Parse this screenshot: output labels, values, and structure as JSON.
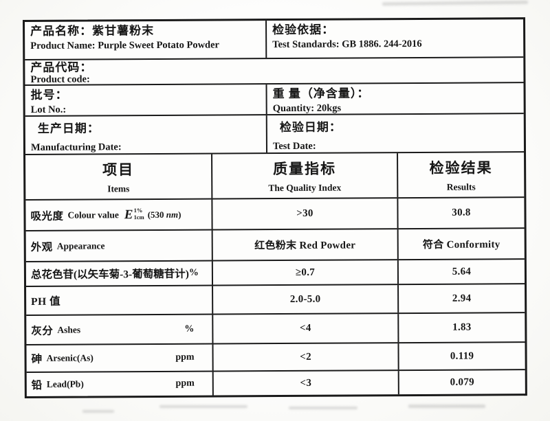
{
  "info": {
    "product_name": {
      "zh": "产品名称：紫甘薯粉末",
      "en": "Product Name: Purple Sweet Potato Powder"
    },
    "test_standards": {
      "zh": "检验依据：",
      "en": "Test Standards: GB 1886. 244-2016"
    },
    "product_code": {
      "zh": "产品代码：",
      "en": "Product code:"
    },
    "lot_no": {
      "zh": "批号：",
      "en": "Lot No.:"
    },
    "quantity": {
      "zh": "重 量（净含量）：",
      "en": "Quantity: 20kgs"
    },
    "manufacturing_date": {
      "zh": "生产日期：",
      "en": "Manufacturing Date:"
    },
    "test_date": {
      "zh": "检验日期：",
      "en": "Test Date:"
    }
  },
  "table": {
    "headers": {
      "items": {
        "zh": "项目",
        "en": "Items"
      },
      "quality_index": {
        "zh": "质量指标",
        "en": "The Quality Index"
      },
      "results": {
        "zh": "检验结果",
        "en": "Results"
      }
    },
    "rows": [
      {
        "item_zh": "吸光度",
        "item_en": "Colour value",
        "formula": {
          "base": "E",
          "sup": "1%",
          "sub": "1cm",
          "arg_open": "(530 ",
          "arg_unit": "nm",
          "arg_close": ")"
        },
        "spec": ">30",
        "result": "30.8"
      },
      {
        "item_zh": "外观",
        "item_en": "Appearance",
        "spec": "红色粉末 Red Powder",
        "result": "符合 Conformity"
      },
      {
        "item_zh": "总花色苷(以矢车菊-3-葡萄糖苷计)",
        "unit": "%",
        "spec": "≥0.7",
        "result": "5.64"
      },
      {
        "item_zh": "PH 值",
        "spec": "2.0-5.0",
        "result": "2.94"
      },
      {
        "item_zh": "灰分",
        "item_en": "Ashes",
        "unit": "%",
        "spec": "<4",
        "result": "1.83"
      },
      {
        "item_zh": "砷",
        "item_en": "Arsenic(As)",
        "unit": "ppm",
        "spec": "<2",
        "result": "0.119"
      },
      {
        "item_zh": "铅",
        "item_en": "Lead(Pb)",
        "unit": "ppm",
        "spec": "<3",
        "result": "0.079"
      }
    ]
  },
  "colors": {
    "ink": "#161616",
    "border": "#1a1a1a",
    "paper": "#fdfdfc"
  }
}
